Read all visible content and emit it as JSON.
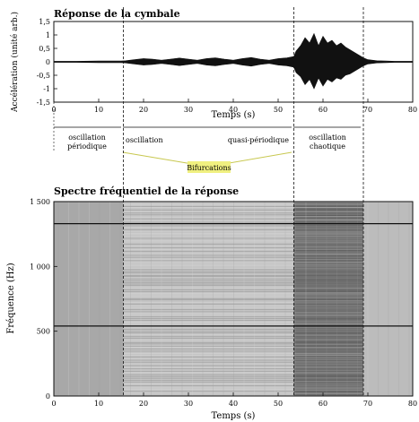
{
  "top_title": "Réponse de la cymbale",
  "spec_title": "Spectre fréquentiel de la réponse",
  "bifurcation_label": "Bifurcations",
  "regimes": [
    {
      "lines": [
        "oscillation",
        "périodique"
      ]
    },
    {
      "lines": [
        "oscillation"
      ]
    },
    {
      "lines": [
        "quasi-périodique"
      ]
    },
    {
      "lines": [
        "oscillation",
        "chaotique"
      ]
    }
  ],
  "colors": {
    "highlight": "#f0f080",
    "ink": "#111111",
    "bifurcation_line": "#c8c850"
  },
  "chart_data": [
    {
      "type": "line",
      "title": "Réponse de la cymbale",
      "xlabel": "Temps (s)",
      "ylabel": "Accélération (unité arb.)",
      "xlim": [
        0,
        80
      ],
      "ylim": [
        -1.5,
        1.5
      ],
      "x_ticks": [
        "0",
        "10",
        "20",
        "30",
        "40",
        "50",
        "60",
        "70",
        "80"
      ],
      "y_ticks": [
        "-1,5",
        "-1",
        "-0,5",
        "0",
        "0,5",
        "1",
        "1,5"
      ],
      "envelope": {
        "x": [
          0,
          5,
          10,
          15,
          16,
          18,
          20,
          22,
          24,
          26,
          28,
          30,
          32,
          34,
          36,
          38,
          40,
          42,
          44,
          46,
          48,
          50,
          52,
          53.5,
          54,
          55,
          56,
          57,
          58,
          59,
          60,
          61,
          62,
          63,
          64,
          65,
          66,
          67,
          68,
          69,
          70,
          72,
          74,
          76,
          78,
          80
        ],
        "upper": [
          0.02,
          0.02,
          0.03,
          0.03,
          0.04,
          0.08,
          0.12,
          0.1,
          0.06,
          0.1,
          0.14,
          0.1,
          0.06,
          0.12,
          0.15,
          0.1,
          0.06,
          0.12,
          0.16,
          0.1,
          0.06,
          0.12,
          0.15,
          0.2,
          0.4,
          0.6,
          0.9,
          0.7,
          1.05,
          0.6,
          0.95,
          0.7,
          0.8,
          0.6,
          0.7,
          0.55,
          0.45,
          0.35,
          0.25,
          0.15,
          0.08,
          0.04,
          0.03,
          0.02,
          0.02,
          0.02
        ],
        "lower": [
          -0.02,
          -0.02,
          -0.03,
          -0.03,
          -0.04,
          -0.08,
          -0.12,
          -0.1,
          -0.06,
          -0.1,
          -0.14,
          -0.1,
          -0.06,
          -0.12,
          -0.15,
          -0.1,
          -0.06,
          -0.12,
          -0.16,
          -0.1,
          -0.06,
          -0.12,
          -0.15,
          -0.2,
          -0.4,
          -0.55,
          -0.85,
          -0.65,
          -1.0,
          -0.6,
          -0.9,
          -0.65,
          -0.75,
          -0.6,
          -0.65,
          -0.5,
          -0.45,
          -0.35,
          -0.25,
          -0.15,
          -0.08,
          -0.04,
          -0.03,
          -0.02,
          -0.02,
          -0.02
        ]
      },
      "markers_x": [
        15.5,
        53.5,
        69
      ]
    },
    {
      "type": "heatmap",
      "title": "Spectre fréquentiel de la réponse",
      "xlabel": "Temps (s)",
      "ylabel": "Fréquence (Hz)",
      "xlim": [
        0,
        80
      ],
      "ylim": [
        0,
        1500
      ],
      "x_ticks": [
        "0",
        "10",
        "20",
        "30",
        "40",
        "50",
        "60",
        "70",
        "80"
      ],
      "y_ticks": [
        "0",
        "500",
        "1 000",
        "1 500"
      ],
      "strong_lines_hz": [
        540,
        1330
      ],
      "markers_x": [
        15.5,
        53.5,
        69
      ]
    }
  ]
}
